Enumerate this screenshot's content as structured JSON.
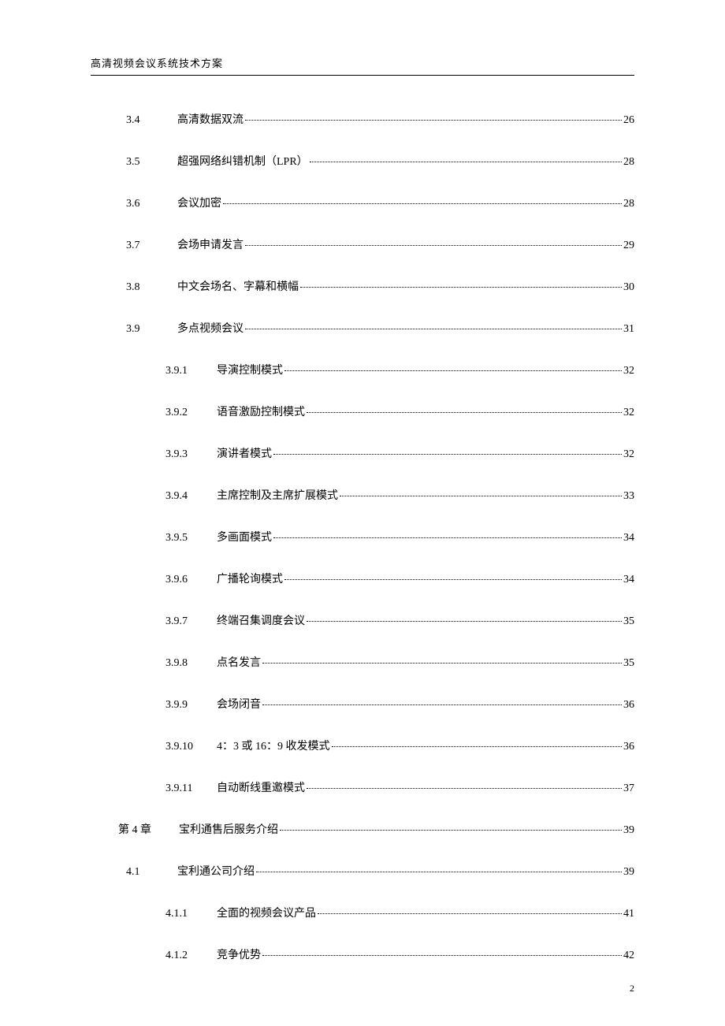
{
  "header": {
    "title": "高清视频会议系统技术方案"
  },
  "toc": [
    {
      "level": 1,
      "num": "3.4",
      "title": "高清数据双流",
      "page": "26"
    },
    {
      "level": 1,
      "num": "3.5",
      "title": "超强网络纠错机制（LPR）",
      "page": "28"
    },
    {
      "level": 1,
      "num": "3.6",
      "title": "会议加密",
      "page": "28"
    },
    {
      "level": 1,
      "num": "3.7",
      "title": "会场申请发言",
      "page": "29"
    },
    {
      "level": 1,
      "num": "3.8",
      "title": "中文会场名、字幕和横幅",
      "page": "30"
    },
    {
      "level": 1,
      "num": "3.9",
      "title": "多点视频会议",
      "page": "31"
    },
    {
      "level": 2,
      "num": "3.9.1",
      "title": "导演控制模式",
      "page": "32"
    },
    {
      "level": 2,
      "num": "3.9.2",
      "title": "语音激励控制模式",
      "page": "32"
    },
    {
      "level": 2,
      "num": "3.9.3",
      "title": "演讲者模式",
      "page": "32"
    },
    {
      "level": 2,
      "num": "3.9.4",
      "title": "主席控制及主席扩展模式",
      "page": "33"
    },
    {
      "level": 2,
      "num": "3.9.5",
      "title": "多画面模式",
      "page": "34"
    },
    {
      "level": 2,
      "num": "3.9.6",
      "title": "广播轮询模式",
      "page": "34"
    },
    {
      "level": 2,
      "num": "3.9.7",
      "title": "终端召集调度会议",
      "page": "35"
    },
    {
      "level": 2,
      "num": "3.9.8",
      "title": "点名发言",
      "page": "35"
    },
    {
      "level": 2,
      "num": "3.9.9",
      "title": "会场闭音",
      "page": "36"
    },
    {
      "level": 2,
      "num": "3.9.10",
      "title": "4：3 或 16：9 收发模式",
      "page": "36"
    },
    {
      "level": 2,
      "num": "3.9.11",
      "title": "自动断线重邀模式",
      "page": "37"
    },
    {
      "level": 0,
      "num": "第 4 章",
      "title": "宝利通售后服务介绍",
      "page": "39"
    },
    {
      "level": 1,
      "num": "4.1",
      "title": "宝利通公司介绍",
      "page": "39"
    },
    {
      "level": 2,
      "num": "4.1.1",
      "title": "全面的视频会议产品",
      "page": "41"
    },
    {
      "level": 2,
      "num": "4.1.2",
      "title": "竞争优势",
      "page": "42"
    }
  ],
  "footer": {
    "page_number": "2"
  }
}
